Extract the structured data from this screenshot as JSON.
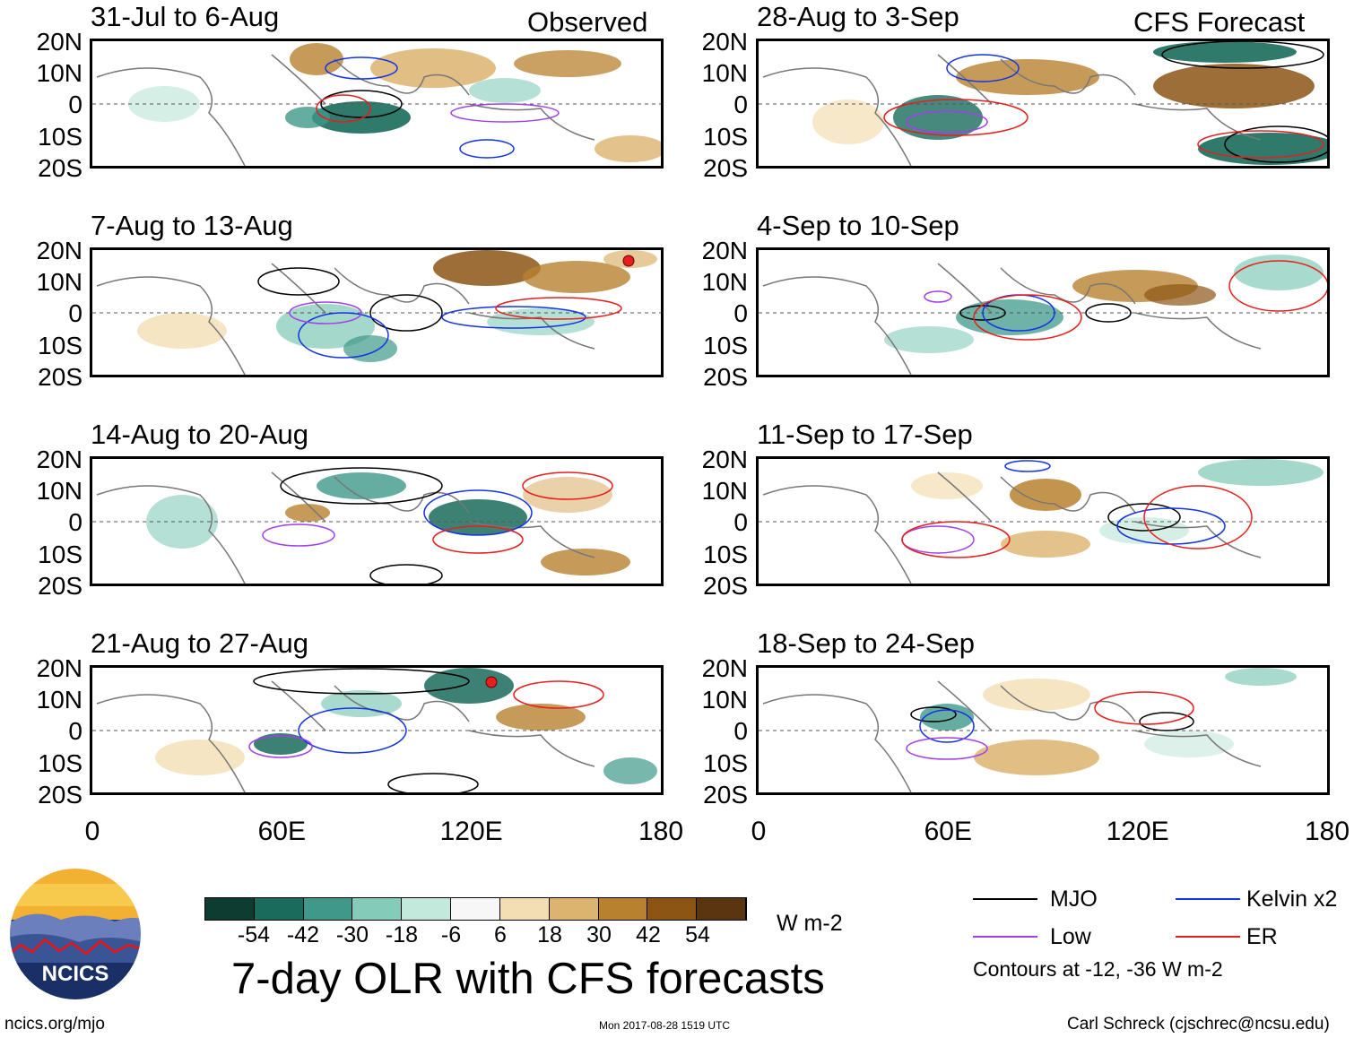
{
  "figure": {
    "title": "7-day OLR with CFS forecasts",
    "footer_left": "ncics.org/mjo",
    "footer_center": "Mon 2017-08-28 1519 UTC",
    "footer_right": "Carl Schreck (cjschrec@ncsu.edu)",
    "logo_text": "NCICS"
  },
  "headers": {
    "observed": "Observed",
    "forecast": "CFS Forecast"
  },
  "panels_left": [
    {
      "title": "31-Jul to 6-Aug"
    },
    {
      "title": "7-Aug to 13-Aug"
    },
    {
      "title": "14-Aug to 20-Aug"
    },
    {
      "title": "21-Aug to 27-Aug"
    }
  ],
  "panels_right": [
    {
      "title": "28-Aug to 3-Sep"
    },
    {
      "title": "4-Sep to 10-Sep"
    },
    {
      "title": "11-Sep to 17-Sep"
    },
    {
      "title": "18-Sep to 24-Sep"
    }
  ],
  "axes": {
    "lat_labels": [
      "20N",
      "10N",
      "0",
      "10S",
      "20S"
    ],
    "lon_labels": [
      "0",
      "60E",
      "120E",
      "180"
    ]
  },
  "colorbar": {
    "unit": "W m-2",
    "labels": [
      "-54",
      "-42",
      "-30",
      "-18",
      "-6",
      "6",
      "18",
      "30",
      "42",
      "54"
    ],
    "colors": [
      "#0d3d31",
      "#1a6b5c",
      "#3f9889",
      "#84cbb9",
      "#c3e8dc",
      "#f7f7f7",
      "#f3deb4",
      "#dcb36f",
      "#b8812f",
      "#8c5514",
      "#5b3510"
    ]
  },
  "legend": {
    "items": [
      {
        "label": "MJO",
        "color": "#000000"
      },
      {
        "label": "Kelvin x2",
        "color": "#1432e6"
      },
      {
        "label": "Low",
        "color": "#a040e8"
      },
      {
        "label": "ER",
        "color": "#e61e1e"
      }
    ],
    "note": "Contours at -12, -36 W m-2"
  },
  "chart_data": {
    "type": "heatmap",
    "title": "7-day OLR with CFS forecasts",
    "variable": "OLR anomaly",
    "unit": "W m-2",
    "lon_range": [
      0,
      180
    ],
    "lat_range": [
      -20,
      20
    ],
    "contour_levels": [
      -12,
      -36
    ],
    "color_levels": [
      -54,
      -42,
      -30,
      -18,
      -6,
      6,
      18,
      30,
      42,
      54
    ],
    "observed_periods": [
      "31-Jul to 6-Aug",
      "7-Aug to 13-Aug",
      "14-Aug to 20-Aug",
      "21-Aug to 27-Aug"
    ],
    "forecast_periods": [
      "28-Aug to 3-Sep",
      "4-Sep to 10-Sep",
      "11-Sep to 17-Sep",
      "18-Sep to 24-Sep"
    ],
    "contour_series": [
      "MJO",
      "Kelvin x2",
      "Low",
      "ER"
    ]
  }
}
